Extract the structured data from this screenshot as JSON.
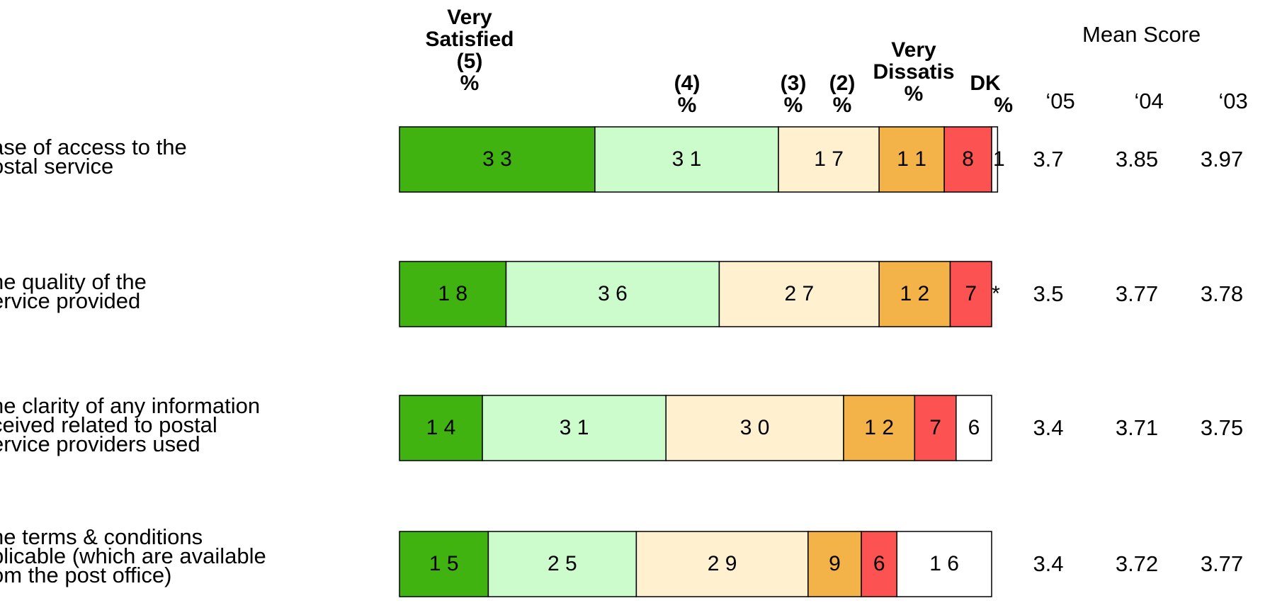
{
  "headers": {
    "very_satisfied": [
      "Very",
      "Satisfied",
      "(5)",
      "%"
    ],
    "four": [
      "(4)",
      "%"
    ],
    "three": [
      "(3)",
      "%"
    ],
    "two": [
      "(2)",
      "%"
    ],
    "very_dissatisfied": [
      "Very",
      "Dissatis",
      "%"
    ],
    "dk": [
      "DK",
      "%"
    ]
  },
  "mean_score": {
    "title": "Mean Score",
    "years": [
      "‘05",
      "‘04",
      "‘03"
    ]
  },
  "colors": {
    "very_satisfied": "#41b311",
    "four": "#ccfbcc",
    "three": "#fff0d0",
    "two": "#f4b349",
    "very_dissatisfied": "#fd5252",
    "dk": "#ffffff"
  },
  "chart_data": {
    "type": "bar",
    "orientation": "horizontal-stacked",
    "categories": [
      "ase of access to the\nostal service",
      "he quality of the\nervice provided",
      "he clarity of any information\nceived related to postal\nervice providers used",
      "he terms & conditions\nplicable (which are available\nom the post office)"
    ],
    "series": [
      {
        "name": "Very Satisfied (5)",
        "values": [
          33,
          18,
          14,
          15
        ]
      },
      {
        "name": "(4)",
        "values": [
          31,
          36,
          31,
          25
        ]
      },
      {
        "name": "(3)",
        "values": [
          17,
          27,
          30,
          29
        ]
      },
      {
        "name": "(2)",
        "values": [
          11,
          12,
          12,
          9
        ]
      },
      {
        "name": "Very Dissatis",
        "values": [
          8,
          7,
          7,
          6
        ]
      },
      {
        "name": "DK",
        "values": [
          1,
          0,
          6,
          16
        ]
      }
    ],
    "value_labels": [
      [
        "3 3",
        "3 1",
        "1 7",
        "1 1",
        "8",
        "1"
      ],
      [
        "1 8",
        "3 6",
        "2 7",
        "1 2",
        "7",
        "*"
      ],
      [
        "1 4",
        "3 1",
        "3 0",
        "1 2",
        "7",
        "6"
      ],
      [
        "1 5",
        "2 5",
        "2 9",
        "9",
        "6",
        "1 6"
      ]
    ],
    "mean_scores": [
      [
        "3.7",
        "3.85",
        "3.97"
      ],
      [
        "3.5",
        "3.77",
        "3.78"
      ],
      [
        "3.4",
        "3.71",
        "3.75"
      ],
      [
        "3.4",
        "3.72",
        "3.77"
      ]
    ]
  }
}
